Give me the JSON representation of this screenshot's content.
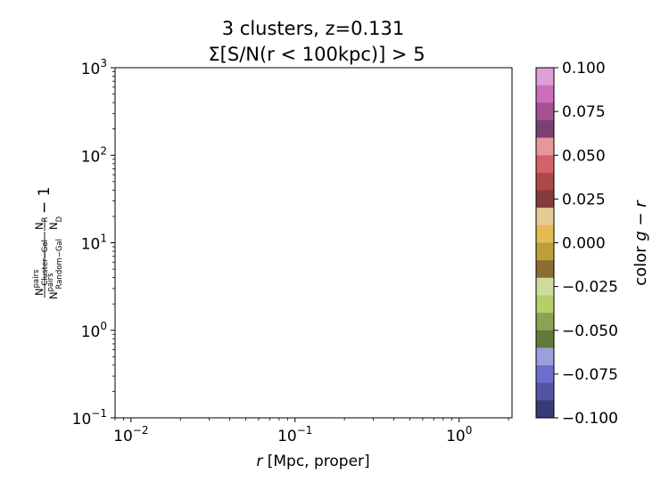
{
  "chart_data": {
    "type": "scatter",
    "title": {
      "line1": "3 clusters, z=0.131",
      "line2": "Σ[S/N(r < 100kpc)] > 5"
    },
    "xlabel": "r [Mpc, proper]",
    "ylabel": "N^pairs_Cluster−Gal / N^pairs_Random−Gal · N_R / N_D − 1",
    "x_scale": "log",
    "y_scale": "log",
    "xlim": [
      0.008,
      2.1
    ],
    "ylim": [
      0.1,
      1000
    ],
    "x_ticks": [
      {
        "value": 0.01,
        "base": "10",
        "exp": "−2"
      },
      {
        "value": 0.1,
        "base": "10",
        "exp": "−1"
      },
      {
        "value": 1,
        "base": "10",
        "exp": "0"
      }
    ],
    "y_ticks": [
      {
        "value": 0.1,
        "base": "10",
        "exp": "−1"
      },
      {
        "value": 1,
        "base": "10",
        "exp": "0"
      },
      {
        "value": 10,
        "base": "10",
        "exp": "1"
      },
      {
        "value": 100,
        "base": "10",
        "exp": "2"
      },
      {
        "value": 1000,
        "base": "10",
        "exp": "3"
      }
    ],
    "series": [],
    "grid": false,
    "colorbar": {
      "label": "color g − r",
      "range": [
        -0.1,
        0.1
      ],
      "ticks": [
        "0.100",
        "0.075",
        "0.050",
        "0.025",
        "0.000",
        "−0.025",
        "−0.050",
        "−0.075",
        "−0.100"
      ],
      "colors_top_to_bottom": [
        "#de9ed6",
        "#ce6dbd",
        "#a55194",
        "#7b4173",
        "#e7969c",
        "#d6616b",
        "#ad494a",
        "#843c39",
        "#e7cb94",
        "#e7ba52",
        "#bd9e39",
        "#8c6d31",
        "#cedb9c",
        "#b5cf6b",
        "#8ca252",
        "#637939",
        "#9c9ede",
        "#6b6ecf",
        "#5254a3",
        "#393b79"
      ]
    }
  }
}
